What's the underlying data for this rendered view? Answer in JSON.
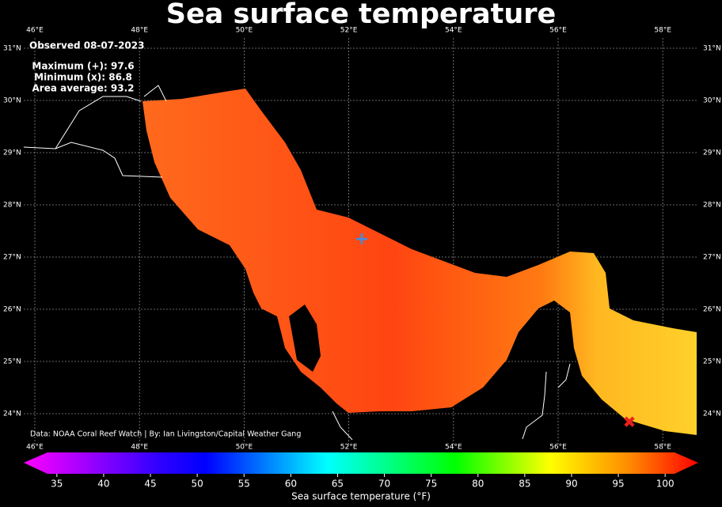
{
  "header": {
    "title": "Sea surface temperature"
  },
  "annotations": {
    "observed": "Observed 08-07-2023",
    "maximum": "Maximum (+): 97.6",
    "minimum": "Minimum (x): 86.8",
    "average": "Area average: 93.2"
  },
  "credit": "Data: NOAA Coral Reef Watch | By: Ian Livingston/Capital Weather Gang",
  "map": {
    "lon_labels": [
      "46°E",
      "48°E",
      "50°E",
      "52°E",
      "54°E",
      "56°E",
      "58°E"
    ],
    "lat_labels": [
      "31°N",
      "30°N",
      "29°N",
      "28°N",
      "27°N",
      "26°N",
      "25°N",
      "24°N"
    ]
  },
  "colorbar": {
    "label": "Sea surface temperature (°F)",
    "lim": [
      34,
      101
    ],
    "ticks": [
      35,
      40,
      45,
      50,
      55,
      60,
      65,
      70,
      75,
      80,
      85,
      90,
      95,
      100
    ]
  }
}
